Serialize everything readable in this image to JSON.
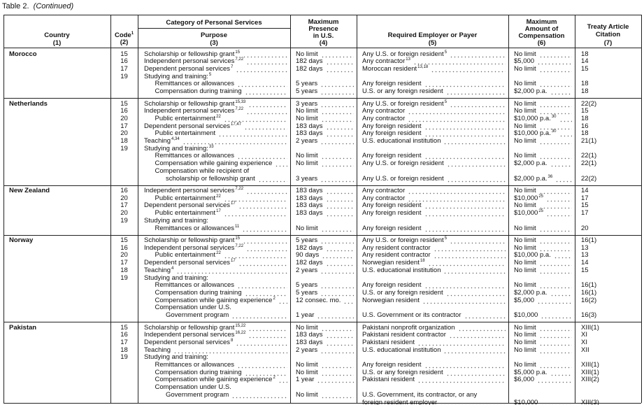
{
  "caption": {
    "label": "Table 2.",
    "note": "(Continued)"
  },
  "header": {
    "country": "Country",
    "country_num": "(1)",
    "code": "Code",
    "code_note": "1",
    "code_num": "(2)",
    "category": "Category of Personal Services",
    "purpose": "Purpose",
    "purpose_num": "(3)",
    "presence": [
      "Maximum",
      "Presence",
      "in U.S."
    ],
    "presence_num": "(4)",
    "employer": "Required Employer or Payer",
    "employer_num": "(5)",
    "compensation": [
      "Maximum",
      "Amount of",
      "Compensation"
    ],
    "compensation_num": "(6)",
    "citation": [
      "Treaty Article",
      "Citation"
    ],
    "citation_num": "(7)"
  },
  "sections": [
    {
      "country": "Morocco",
      "rows": [
        {
          "code": "15",
          "purpose": "Scholarship or fellowship grant",
          "purpose_note": "15",
          "presence": "No limit",
          "employer": "Any U.S. or foreign resident",
          "employer_note": "5",
          "compensation": "No limit",
          "citation": "18"
        },
        {
          "code": "16",
          "purpose": "Independent personal services",
          "purpose_note": "7,22",
          "presence": "182 days",
          "employer": "Any contractor",
          "employer_note": "13",
          "compensation": "$5,000",
          "citation": "14"
        },
        {
          "code": "17",
          "purpose": "Dependent personal services",
          "purpose_note": "7",
          "presence": "182 days",
          "employer": "Moroccan resident",
          "employer_note": "13,18",
          "compensation": "No limit",
          "citation": "15"
        },
        {
          "code": "19",
          "purpose": "Studying and training:",
          "purpose_note": "5"
        },
        {
          "level": 1,
          "purpose": "Remittances or allowances",
          "presence": "5 years",
          "employer": "Any foreign resident",
          "compensation": "No limit",
          "citation": "18"
        },
        {
          "level": 1,
          "purpose": "Compensation during training",
          "presence": "5 years",
          "employer": "U.S. or any foreign resident",
          "compensation": "$2,000 p.a.",
          "citation": "18"
        }
      ]
    },
    {
      "country": "Netherlands",
      "rows": [
        {
          "code": "15",
          "purpose": "Scholarship or fellowship grant",
          "purpose_note": "15,33",
          "presence": "3 years",
          "employer": "Any U.S. or foreign resident",
          "employer_note": "5",
          "compensation": "No limit",
          "citation": "22(2)"
        },
        {
          "code": "16",
          "purpose": "Independent personal services",
          "purpose_note": "7,22",
          "presence": "No limit",
          "employer": "Any contractor",
          "compensation": "No limit",
          "citation": "15"
        },
        {
          "code": "20",
          "level": 1,
          "purpose": "Public entertainment",
          "purpose_note": "22",
          "presence": "No limit",
          "employer": "Any contractor",
          "compensation": "$10,000 p.a.",
          "compensation_note": "30",
          "citation": "18"
        },
        {
          "code": "17",
          "purpose": "Dependent personal services",
          "purpose_note": "17,47",
          "presence": "183 days",
          "employer": "Any foreign resident",
          "compensation": "No limit",
          "citation": "16"
        },
        {
          "code": "20",
          "level": 1,
          "purpose": "Public entertainment",
          "presence": "183 days",
          "employer": "Any foreign resident",
          "compensation": "$10,000 p.a.",
          "compensation_note": "30",
          "citation": "18"
        },
        {
          "code": "18",
          "purpose": "Teaching",
          "purpose_note": "4,34",
          "presence": "2 years",
          "employer": "U.S. educational institution",
          "compensation": "No limit",
          "citation": "21(1)"
        },
        {
          "code": "19",
          "purpose": "Studying and training:",
          "purpose_note": "33"
        },
        {
          "level": 1,
          "purpose": "Remittances or allowances",
          "presence": "No limit",
          "employer": "Any foreign resident",
          "compensation": "No limit",
          "citation": "22(1)"
        },
        {
          "level": 1,
          "purpose": "Compensation while gaining experience",
          "presence": "No limit",
          "employer": "Any U.S. or foreign resident",
          "compensation": "$2,000 p.a.",
          "citation": "22(1)"
        },
        {
          "level": 1,
          "purpose": "Compensation while recipient of"
        },
        {
          "level": 2,
          "purpose": "scholarship or fellowship grant",
          "presence": "3 years",
          "employer": "Any U.S. or foreign resident",
          "compensation": "$2,000 p.a.",
          "compensation_note": "36",
          "citation": "22(2)"
        }
      ]
    },
    {
      "country": "New Zealand",
      "rows": [
        {
          "code": "16",
          "purpose": "Independent personal services",
          "purpose_note": "7,22",
          "presence": "183 days",
          "employer": "Any contractor",
          "compensation": "No limit",
          "citation": "14"
        },
        {
          "code": "20",
          "level": 1,
          "purpose": "Public entertainment",
          "purpose_note": "22",
          "presence": "183 days",
          "employer": "Any contractor",
          "compensation": "$10,000",
          "compensation_note": "25",
          "citation": "17"
        },
        {
          "code": "17",
          "purpose": "Dependent personal services",
          "purpose_note": "17",
          "presence": "183 days",
          "employer": "Any foreign resident",
          "compensation": "No limit",
          "citation": "15"
        },
        {
          "code": "20",
          "level": 1,
          "purpose": "Public entertainment",
          "purpose_note": "17",
          "presence": "183 days",
          "employer": "Any foreign resident",
          "compensation": "$10,000",
          "compensation_note": "25",
          "citation": "17"
        },
        {
          "code": "19",
          "purpose": "Studying and training:"
        },
        {
          "level": 1,
          "purpose": "Remittances or allowances",
          "purpose_note": "11",
          "presence": "No limit",
          "employer": "Any foreign resident",
          "compensation": "No limit",
          "citation": "20"
        }
      ]
    },
    {
      "country": "Norway",
      "rows": [
        {
          "code": "15",
          "purpose": "Scholarship or fellowship grant",
          "purpose_note": "15",
          "presence": "5 years",
          "employer": "Any U.S. or foreign resident",
          "employer_note": "5",
          "compensation": "No limit",
          "citation": "16(1)"
        },
        {
          "code": "16",
          "purpose": "Independent personal services",
          "purpose_note": "7,22",
          "presence": "182 days",
          "employer": "Any resident contractor",
          "compensation": "No limit",
          "citation": "13"
        },
        {
          "code": "20",
          "level": 1,
          "purpose": "Public entertainment",
          "purpose_note": "22",
          "presence": "90 days",
          "employer": "Any resident contractor",
          "compensation": "$10,000 p.a.",
          "citation": "13"
        },
        {
          "code": "17",
          "purpose": "Dependent personal services",
          "purpose_note": "17",
          "presence": "182 days",
          "employer": "Norwegian resident",
          "employer_note": "18",
          "compensation": "No limit",
          "citation": "14"
        },
        {
          "code": "18",
          "purpose": "Teaching",
          "purpose_note": "4",
          "presence": "2 years",
          "employer": "U.S. educational institution",
          "compensation": "No limit",
          "citation": "15"
        },
        {
          "code": "19",
          "purpose": "Studying and training:"
        },
        {
          "level": 1,
          "purpose": "Remittances or allowances",
          "presence": "5 years",
          "employer": "Any foreign resident",
          "compensation": "No limit",
          "citation": "16(1)"
        },
        {
          "level": 1,
          "purpose": "Compensation during training",
          "presence": "5 years",
          "employer": "U.S. or any foreign resident",
          "compensation": "$2,000 p.a.",
          "citation": "16(1)"
        },
        {
          "level": 1,
          "purpose": "Compensation while gaining experience",
          "purpose_note": "2",
          "presence": "12 consec. mo.",
          "employer": "Norwegian resident",
          "compensation": "$5,000",
          "citation": "16(2)"
        },
        {
          "level": 1,
          "purpose": "Compensation under U.S."
        },
        {
          "level": 2,
          "purpose": "Government program",
          "presence": "1 year",
          "employer": "U.S. Government or its contractor",
          "compensation": "$10,000",
          "citation": "16(3)"
        }
      ]
    },
    {
      "country": "Pakistan",
      "rows": [
        {
          "code": "15",
          "purpose": "Scholarship or fellowship grant",
          "purpose_note": "15,22",
          "presence": "No limit",
          "employer": "Pakistani nonprofit organization",
          "compensation": "No limit",
          "citation": "XIII(1)"
        },
        {
          "code": "16",
          "purpose": "Independent personal services",
          "purpose_note": "16,22",
          "presence": "183 days",
          "employer": "Pakistani resident contractor",
          "compensation": "No limit",
          "citation": "XI"
        },
        {
          "code": "17",
          "purpose": "Dependent personal services",
          "purpose_note": "8",
          "presence": "183 days",
          "employer": "Pakistani resident",
          "compensation": "No limit",
          "citation": "XI"
        },
        {
          "code": "18",
          "purpose": "Teaching",
          "presence": "2 years",
          "employer": "U.S. educational institution",
          "compensation": "No limit",
          "citation": "XII"
        },
        {
          "code": "19",
          "purpose": "Studying and training:"
        },
        {
          "level": 1,
          "purpose": "Remittances or allowances",
          "presence": "No limit",
          "employer": "Any foreign resident",
          "compensation": "No limit",
          "citation": "XIII(1)"
        },
        {
          "level": 1,
          "purpose": "Compensation during training",
          "presence": "No limit",
          "employer": "U.S. or any foreign resident",
          "compensation": "$5,000 p.a.",
          "citation": "XIII(1)"
        },
        {
          "level": 1,
          "purpose": "Compensation while gaining experience",
          "purpose_note": "2",
          "presence": "1 year",
          "employer": "Pakistani resident",
          "compensation": "$6,000",
          "citation": "XIII(2)"
        },
        {
          "level": 1,
          "purpose": "Compensation under U.S."
        },
        {
          "level": 2,
          "purpose": "Government program",
          "presence": "No limit",
          "employer": "U.S. Government, its contractor, or any"
        },
        {
          "employer": "foreign resident employer",
          "compensation": "$10,000",
          "citation": "XIII(3)"
        }
      ]
    }
  ]
}
